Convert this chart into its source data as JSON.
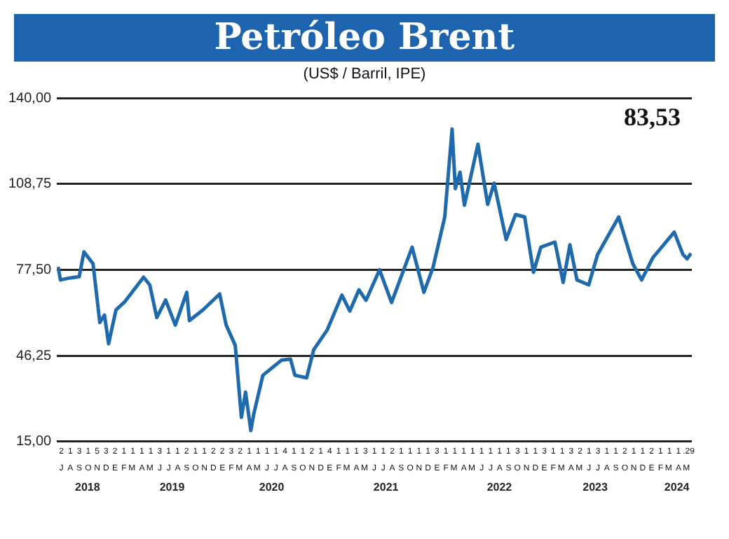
{
  "chart_data": {
    "type": "line",
    "title": "Petróleo Brent",
    "subtitle": "(US$ / Barril, IPE)",
    "annotations": [
      "83,53",
      "2 1 3 1 5 3 2 1 1 1 1 3 1 1 2 1 1 2 2 3 2 1 1 1 1 4 1 1 2 1 4 1 1 1 3 1 1 2 1 1 1 1 3 1 1 1 1 1 1 1 1 3 1 1 3 1 1 3 2 1 3 1 1 2 1 1 2 1 1 1 .29",
      "J A S O N D E F M A M J J A S O N D E F M A M J J A S O N D E F M A M J J A S O N D E F M A M J J A S O N D E F M A M J J A S O N D E F M A M"
    ],
    "x": [
      "2018-07-05",
      "2018-07-13",
      "2018-08-13",
      "2018-09-15",
      "2018-10-01",
      "2018-11-01",
      "2018-11-24",
      "2018-12-10",
      "2018-12-24",
      "2019-01-18",
      "2019-02-18",
      "2019-04-22",
      "2019-05-13",
      "2019-06-06",
      "2019-07-06",
      "2019-08-08",
      "2019-09-16",
      "2019-09-25",
      "2019-11-10",
      "2020-01-06",
      "2020-01-28",
      "2020-02-28",
      "2020-03-12",
      "2020-03-20",
      "2020-04-03",
      "2020-04-21",
      "2020-05-01",
      "2020-06-01",
      "2020-08-03",
      "2020-09-03",
      "2020-09-18",
      "2020-10-28",
      "2020-11-21",
      "2021-01-06",
      "2021-02-25",
      "2021-03-24",
      "2021-04-24",
      "2021-05-18",
      "2021-07-03",
      "2021-08-13",
      "2021-10-22",
      "2021-12-01",
      "2022-01-01",
      "2022-02-10",
      "2022-03-07",
      "2022-03-18",
      "2022-04-03",
      "2022-04-18",
      "2022-06-03",
      "2022-07-06",
      "2022-07-28",
      "2022-09-07",
      "2022-10-09",
      "2022-11-09",
      "2022-12-09",
      "2023-01-03",
      "2023-02-20",
      "2023-03-20",
      "2023-04-12",
      "2023-05-06",
      "2023-06-15",
      "2023-07-15",
      "2023-09-25",
      "2023-11-12",
      "2023-12-12",
      "2024-01-20",
      "2024-04-01",
      "2024-05-01",
      "2024-05-15",
      "2024-05-28"
    ],
    "series": [
      {
        "color": "#1f6aad",
        "values": [
          78.6,
          73.8,
          74.5,
          75,
          84,
          79.7,
          58.3,
          61,
          50.6,
          62.9,
          66,
          74.8,
          72,
          60.1,
          66.5,
          57.4,
          69.3,
          59,
          62.9,
          68.7,
          57.4,
          50,
          33.6,
          23.8,
          33,
          19,
          25,
          39.1,
          44.6,
          45,
          39.1,
          38.2,
          48.4,
          55.6,
          68.3,
          62.5,
          70.2,
          66.4,
          77.5,
          65.6,
          85.7,
          69.3,
          78.3,
          96.7,
          128.7,
          107,
          113,
          101,
          123.2,
          101.3,
          109,
          88.5,
          97.6,
          96.7,
          76.6,
          85.7,
          87.6,
          72.9,
          86.6,
          73.8,
          72,
          83,
          96.7,
          79.7,
          73.8,
          82,
          91.2,
          83,
          81.5,
          83.5
        ]
      }
    ],
    "ylim": [
      15,
      140
    ],
    "yticks": [
      {
        "value": 15,
        "label": "15,00"
      },
      {
        "value": 46.25,
        "label": "46,25"
      },
      {
        "value": 77.5,
        "label": "77,50"
      },
      {
        "value": 108.75,
        "label": "108,75"
      },
      {
        "value": 140,
        "label": "140,00"
      }
    ],
    "grid": "y",
    "xlim": [
      "2018-07-01",
      "2024-05-31"
    ],
    "xticks": [
      {
        "value": "2018-10-13",
        "label": "2018"
      },
      {
        "value": "2019-07-28",
        "label": "2019"
      },
      {
        "value": "2020-07-01",
        "label": "2020"
      },
      {
        "value": "2021-07-25",
        "label": "2021"
      },
      {
        "value": "2022-08-15",
        "label": "2022"
      },
      {
        "value": "2023-07-07",
        "label": "2023"
      },
      {
        "value": "2024-04-10",
        "label": "2024"
      }
    ]
  }
}
